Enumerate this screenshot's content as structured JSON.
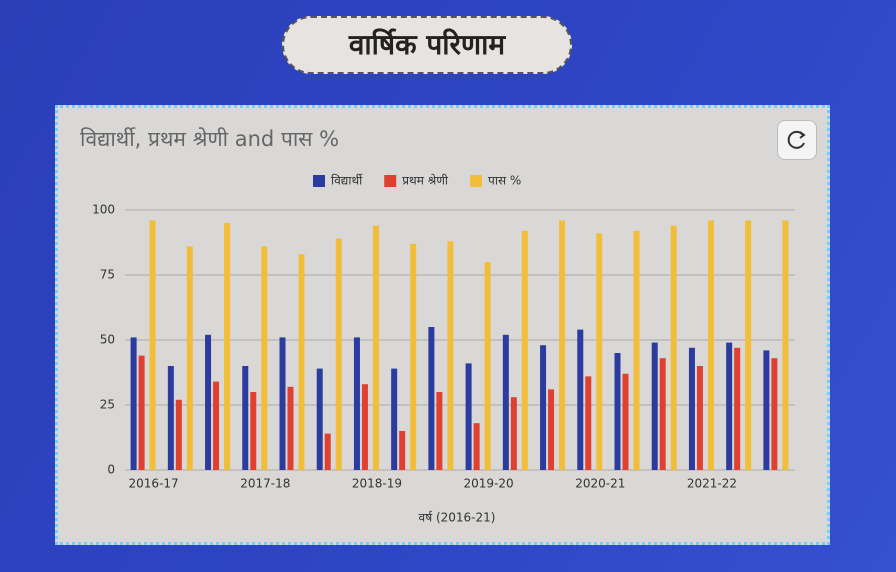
{
  "header": {
    "title": "वार्षिक परिणाम"
  },
  "chart_data": {
    "type": "bar",
    "title": "विद्यार्थी, प्रथम श्रेणी and पास %",
    "x_label": "वर्ष (2016-21)",
    "categories": [
      "2016-17",
      null,
      null,
      "2017-18",
      null,
      null,
      "2018-19",
      null,
      null,
      "2019-20",
      null,
      null,
      "2020-21",
      null,
      null,
      "2021-22",
      null,
      null
    ],
    "series": [
      {
        "name": "विद्यार्थी",
        "color": "#2b3b9e",
        "values": [
          51,
          40,
          52,
          40,
          51,
          39,
          51,
          39,
          55,
          41,
          52,
          48,
          54,
          45,
          49,
          47,
          49,
          46
        ]
      },
      {
        "name": "प्रथम श्रेणी",
        "color": "#e0402f",
        "values": [
          44,
          27,
          34,
          30,
          32,
          14,
          33,
          15,
          30,
          18,
          28,
          31,
          36,
          37,
          43,
          40,
          47,
          43
        ]
      },
      {
        "name": "पास %",
        "color": "#f2be3a",
        "values": [
          96,
          86,
          95,
          86,
          83,
          89,
          94,
          87,
          88,
          80,
          92,
          96,
          91,
          92,
          94,
          96,
          96,
          96
        ]
      }
    ],
    "ylim": [
      0,
      100
    ],
    "yticks": [
      0,
      25,
      50,
      75,
      100
    ],
    "grid": true,
    "legend": "top"
  }
}
